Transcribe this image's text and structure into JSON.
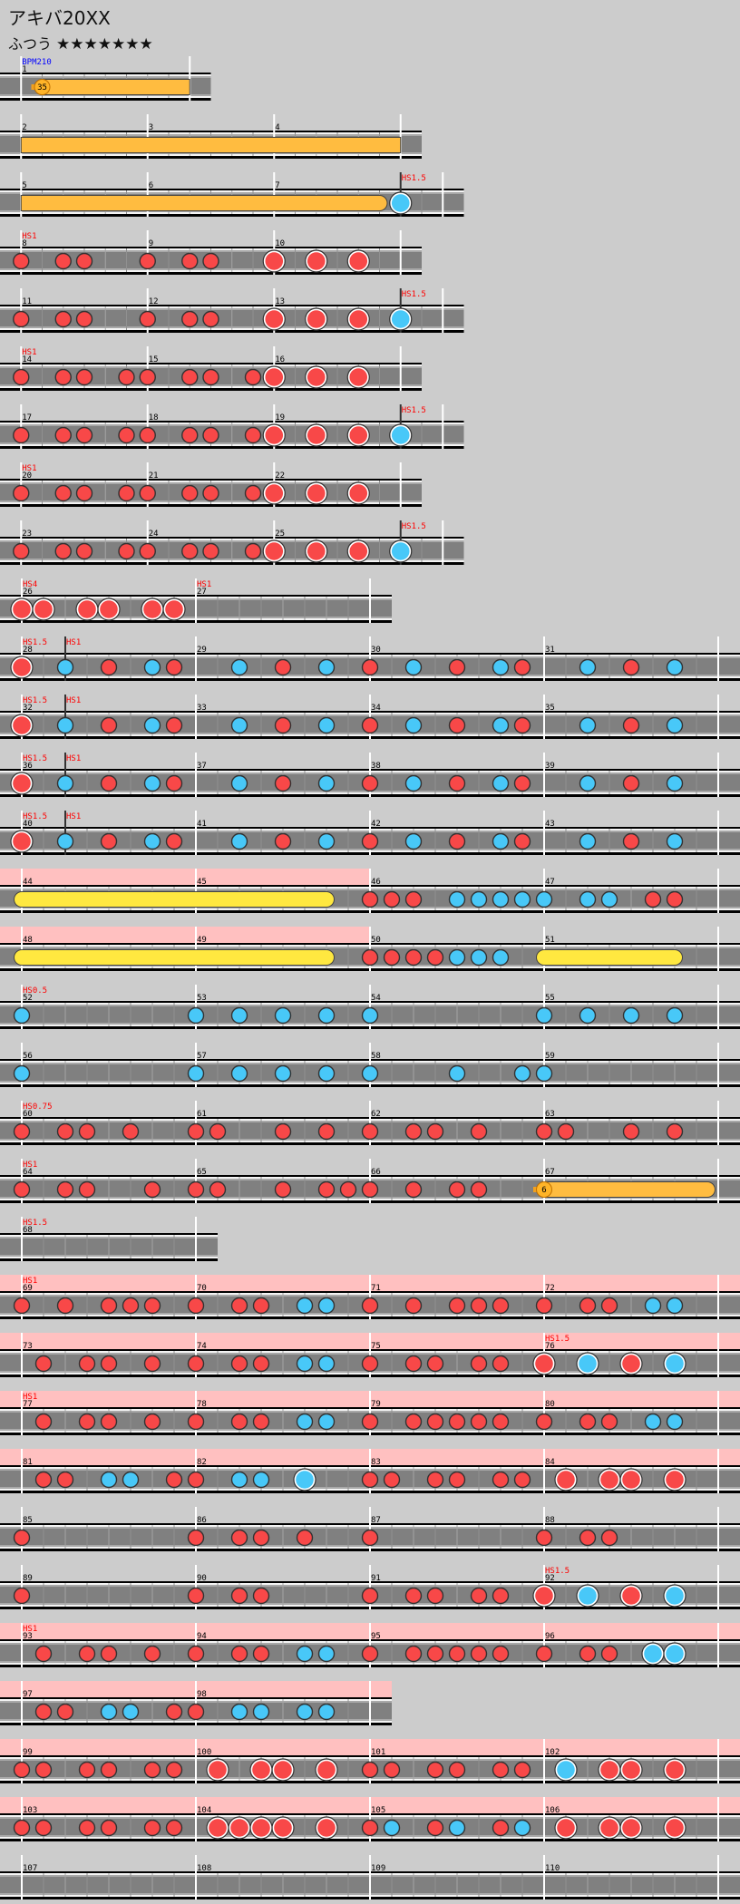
{
  "header": {
    "title": "アキバ20XX",
    "difficulty": "ふつう",
    "stars": 7
  },
  "colors": {
    "background": "#cccccc",
    "lane": "#808080",
    "don": "#f84848",
    "ka": "#48c8f8",
    "roll": "#ffe840",
    "balloon": "#ffbc40",
    "gogo": "#ffc0c0",
    "hs_label": "#ff0000",
    "bpm_label": "#0000ff"
  },
  "note_legend": {
    "0": "none",
    "1": "don",
    "2": "ka",
    "3": "big-don",
    "4": "big-ka",
    "6": "big-drumroll-start",
    "7": "balloon-start",
    "8": "roll-end"
  },
  "rows": [
    {
      "measures": [
        {
          "num": "1",
          "beats": 4,
          "notes": "07000000",
          "balloon": "35",
          "events": [
            {
              "pos": 0,
              "text": "BPM210",
              "type": "bpm"
            }
          ]
        }
      ]
    },
    {
      "measures": [
        {
          "num": "2",
          "beats": 3,
          "notes": "0"
        },
        {
          "num": "3",
          "beats": 3,
          "notes": "0"
        },
        {
          "num": "4",
          "beats": 3,
          "notes": "0"
        }
      ]
    },
    {
      "measures": [
        {
          "num": "5",
          "beats": 3,
          "notes": "0"
        },
        {
          "num": "6",
          "beats": 3,
          "notes": "0"
        },
        {
          "num": "7",
          "beats": 4,
          "notes": "00000840",
          "events": [
            {
              "pos": 0.75,
              "text": "HS1.5",
              "type": "hs"
            }
          ]
        }
      ]
    },
    {
      "measures": [
        {
          "num": "8",
          "beats": 3,
          "notes": "101100",
          "events": [
            {
              "pos": 0,
              "text": "HS1",
              "type": "hs"
            }
          ]
        },
        {
          "num": "9",
          "beats": 3,
          "notes": "101100"
        },
        {
          "num": "10",
          "beats": 3,
          "notes": "303030"
        }
      ]
    },
    {
      "measures": [
        {
          "num": "11",
          "beats": 3,
          "notes": "101100"
        },
        {
          "num": "12",
          "beats": 3,
          "notes": "101100"
        },
        {
          "num": "13",
          "beats": 4,
          "notes": "30303040",
          "events": [
            {
              "pos": 0.75,
              "text": "HS1.5",
              "type": "hs"
            }
          ]
        }
      ]
    },
    {
      "measures": [
        {
          "num": "14",
          "beats": 3,
          "notes": "101101",
          "events": [
            {
              "pos": 0,
              "text": "HS1",
              "type": "hs"
            }
          ]
        },
        {
          "num": "15",
          "beats": 3,
          "notes": "101101"
        },
        {
          "num": "16",
          "beats": 3,
          "notes": "303030"
        }
      ]
    },
    {
      "measures": [
        {
          "num": "17",
          "beats": 3,
          "notes": "101101"
        },
        {
          "num": "18",
          "beats": 3,
          "notes": "101101"
        },
        {
          "num": "19",
          "beats": 4,
          "notes": "30303040",
          "events": [
            {
              "pos": 0.75,
              "text": "HS1.5",
              "type": "hs"
            }
          ]
        }
      ]
    },
    {
      "measures": [
        {
          "num": "20",
          "beats": 3,
          "notes": "101101",
          "events": [
            {
              "pos": 0,
              "text": "HS1",
              "type": "hs"
            }
          ]
        },
        {
          "num": "21",
          "beats": 3,
          "notes": "101101"
        },
        {
          "num": "22",
          "beats": 3,
          "notes": "303030"
        }
      ]
    },
    {
      "measures": [
        {
          "num": "23",
          "beats": 3,
          "notes": "101101"
        },
        {
          "num": "24",
          "beats": 3,
          "notes": "101101"
        },
        {
          "num": "25",
          "beats": 4,
          "notes": "30303040",
          "events": [
            {
              "pos": 0.75,
              "text": "HS1.5",
              "type": "hs"
            }
          ]
        }
      ]
    },
    {
      "measures": [
        {
          "num": "26",
          "beats": 4,
          "notes": "33033033",
          "events": [
            {
              "pos": 0,
              "text": "HS4",
              "type": "hs"
            }
          ]
        },
        {
          "num": "27",
          "beats": 4,
          "notes": "0",
          "events": [
            {
              "pos": 0,
              "text": "HS1",
              "type": "hs"
            }
          ]
        }
      ]
    },
    {
      "measures": [
        {
          "num": "28",
          "beats": 4,
          "notes": "30201021",
          "events": [
            {
              "pos": 0,
              "text": "HS1.5",
              "type": "hs"
            },
            {
              "pos": 0.25,
              "text": "HS1",
              "type": "hs"
            }
          ]
        },
        {
          "num": "29",
          "beats": 4,
          "notes": "00201020"
        },
        {
          "num": "30",
          "beats": 4,
          "notes": "10201021"
        },
        {
          "num": "31",
          "beats": 4,
          "notes": "00201020"
        }
      ]
    },
    {
      "measures": [
        {
          "num": "32",
          "beats": 4,
          "notes": "30201021",
          "events": [
            {
              "pos": 0,
              "text": "HS1.5",
              "type": "hs"
            },
            {
              "pos": 0.25,
              "text": "HS1",
              "type": "hs"
            }
          ]
        },
        {
          "num": "33",
          "beats": 4,
          "notes": "00201020"
        },
        {
          "num": "34",
          "beats": 4,
          "notes": "10201021"
        },
        {
          "num": "35",
          "beats": 4,
          "notes": "00201020"
        }
      ]
    },
    {
      "measures": [
        {
          "num": "36",
          "beats": 4,
          "notes": "30201021",
          "events": [
            {
              "pos": 0,
              "text": "HS1.5",
              "type": "hs"
            },
            {
              "pos": 0.25,
              "text": "HS1",
              "type": "hs"
            }
          ]
        },
        {
          "num": "37",
          "beats": 4,
          "notes": "00201020"
        },
        {
          "num": "38",
          "beats": 4,
          "notes": "10201021"
        },
        {
          "num": "39",
          "beats": 4,
          "notes": "00201020"
        }
      ]
    },
    {
      "measures": [
        {
          "num": "40",
          "beats": 4,
          "notes": "30201021",
          "events": [
            {
              "pos": 0,
              "text": "HS1.5",
              "type": "hs"
            },
            {
              "pos": 0.25,
              "text": "HS1",
              "type": "hs"
            }
          ]
        },
        {
          "num": "41",
          "beats": 4,
          "notes": "00201020"
        },
        {
          "num": "42",
          "beats": 4,
          "notes": "10201021"
        },
        {
          "num": "43",
          "beats": 4,
          "notes": "00201020"
        }
      ]
    },
    {
      "measures": [
        {
          "num": "44",
          "beats": 4,
          "notes": "60000000",
          "gogo": true
        },
        {
          "num": "45",
          "beats": 4,
          "notes": "00000080",
          "gogo": true
        },
        {
          "num": "46",
          "beats": 4,
          "notes": "11102222"
        },
        {
          "num": "47",
          "beats": 4,
          "notes": "20220110"
        }
      ]
    },
    {
      "measures": [
        {
          "num": "48",
          "beats": 4,
          "notes": "60000000",
          "gogo": true
        },
        {
          "num": "49",
          "beats": 4,
          "notes": "00000080",
          "gogo": true
        },
        {
          "num": "50",
          "beats": 4,
          "notes": "11112220"
        },
        {
          "num": "51",
          "beats": 4,
          "notes": "60000080"
        }
      ]
    },
    {
      "measures": [
        {
          "num": "52",
          "beats": 4,
          "notes": "20000000",
          "events": [
            {
              "pos": 0,
              "text": "HS0.5",
              "type": "hs"
            }
          ]
        },
        {
          "num": "53",
          "beats": 4,
          "notes": "20202020"
        },
        {
          "num": "54",
          "beats": 4,
          "notes": "20000000"
        },
        {
          "num": "55",
          "beats": 4,
          "notes": "20202020"
        }
      ]
    },
    {
      "measures": [
        {
          "num": "56",
          "beats": 4,
          "notes": "20000000"
        },
        {
          "num": "57",
          "beats": 4,
          "notes": "20202020"
        },
        {
          "num": "58",
          "beats": 4,
          "notes": "20002002"
        },
        {
          "num": "59",
          "beats": 4,
          "notes": "20000000"
        }
      ]
    },
    {
      "measures": [
        {
          "num": "60",
          "beats": 4,
          "notes": "10110100",
          "events": [
            {
              "pos": 0,
              "text": "HS0.75",
              "type": "hs"
            }
          ]
        },
        {
          "num": "61",
          "beats": 4,
          "notes": "11001010"
        },
        {
          "num": "62",
          "beats": 4,
          "notes": "10110100"
        },
        {
          "num": "63",
          "beats": 4,
          "notes": "11001010"
        }
      ]
    },
    {
      "measures": [
        {
          "num": "64",
          "beats": 4,
          "notes": "10110010",
          "events": [
            {
              "pos": 0,
              "text": "HS1",
              "type": "hs"
            }
          ]
        },
        {
          "num": "65",
          "beats": 4,
          "notes": "11001011"
        },
        {
          "num": "66",
          "beats": 4,
          "notes": "10101100"
        },
        {
          "num": "67",
          "beats": 4,
          "notes": "7000000000000008",
          "balloon": "6"
        }
      ]
    },
    {
      "measures": [
        {
          "num": "68",
          "beats": 4,
          "notes": "0",
          "events": [
            {
              "pos": 0,
              "text": "HS1.5",
              "type": "hs"
            }
          ]
        }
      ]
    },
    {
      "measures": [
        {
          "num": "69",
          "beats": 4,
          "notes": "10101110",
          "gogo": true,
          "events": [
            {
              "pos": 0,
              "text": "HS1",
              "type": "hs"
            }
          ]
        },
        {
          "num": "70",
          "beats": 4,
          "notes": "10110220",
          "gogo": true
        },
        {
          "num": "71",
          "beats": 4,
          "notes": "10101110",
          "gogo": true
        },
        {
          "num": "72",
          "beats": 4,
          "notes": "10110220",
          "gogo": true
        }
      ]
    },
    {
      "measures": [
        {
          "num": "73",
          "beats": 4,
          "notes": "01011010",
          "gogo": true
        },
        {
          "num": "74",
          "beats": 4,
          "notes": "10110220",
          "gogo": true
        },
        {
          "num": "75",
          "beats": 4,
          "notes": "10110110",
          "gogo": true
        },
        {
          "num": "76",
          "beats": 4,
          "notes": "30403040",
          "gogo": true,
          "events": [
            {
              "pos": 0,
              "text": "HS1.5",
              "type": "hs"
            }
          ]
        }
      ]
    },
    {
      "measures": [
        {
          "num": "77",
          "beats": 4,
          "notes": "01011010",
          "gogo": true,
          "events": [
            {
              "pos": 0,
              "text": "HS1",
              "type": "hs"
            }
          ]
        },
        {
          "num": "78",
          "beats": 4,
          "notes": "10110220",
          "gogo": true
        },
        {
          "num": "79",
          "beats": 4,
          "notes": "10111110",
          "gogo": true
        },
        {
          "num": "80",
          "beats": 4,
          "notes": "10110220",
          "gogo": true
        }
      ]
    },
    {
      "measures": [
        {
          "num": "81",
          "beats": 4,
          "notes": "01102201",
          "gogo": true
        },
        {
          "num": "82",
          "beats": 4,
          "notes": "10220400",
          "gogo": true
        },
        {
          "num": "83",
          "beats": 4,
          "notes": "11011011",
          "gogo": true
        },
        {
          "num": "84",
          "beats": 4,
          "notes": "03033030",
          "gogo": true
        }
      ]
    },
    {
      "measures": [
        {
          "num": "85",
          "beats": 4,
          "notes": "10000000"
        },
        {
          "num": "86",
          "beats": 4,
          "notes": "10110100"
        },
        {
          "num": "87",
          "beats": 4,
          "notes": "10000000"
        },
        {
          "num": "88",
          "beats": 4,
          "notes": "10110000"
        }
      ]
    },
    {
      "measures": [
        {
          "num": "89",
          "beats": 4,
          "notes": "10000000"
        },
        {
          "num": "90",
          "beats": 4,
          "notes": "10110000"
        },
        {
          "num": "91",
          "beats": 4,
          "notes": "10110110"
        },
        {
          "num": "92",
          "beats": 4,
          "notes": "30403040",
          "events": [
            {
              "pos": 0,
              "text": "HS1.5",
              "type": "hs"
            }
          ]
        }
      ]
    },
    {
      "measures": [
        {
          "num": "93",
          "beats": 4,
          "notes": "01011010",
          "gogo": true,
          "events": [
            {
              "pos": 0,
              "text": "HS1",
              "type": "hs"
            }
          ]
        },
        {
          "num": "94",
          "beats": 4,
          "notes": "10110220",
          "gogo": true
        },
        {
          "num": "95",
          "beats": 4,
          "notes": "10111110",
          "gogo": true
        },
        {
          "num": "96",
          "beats": 4,
          "notes": "10110440",
          "gogo": true
        }
      ]
    },
    {
      "measures": [
        {
          "num": "97",
          "beats": 4,
          "notes": "01102201",
          "gogo": true
        },
        {
          "num": "98",
          "beats": 4,
          "notes": "10220220",
          "gogo": true
        }
      ]
    },
    {
      "measures": [
        {
          "num": "99",
          "beats": 4,
          "notes": "11011011",
          "gogo": true
        },
        {
          "num": "100",
          "beats": 4,
          "notes": "03033030",
          "gogo": true
        },
        {
          "num": "101",
          "beats": 4,
          "notes": "11011011",
          "gogo": true
        },
        {
          "num": "102",
          "beats": 4,
          "notes": "04033030",
          "gogo": true
        }
      ]
    },
    {
      "measures": [
        {
          "num": "103",
          "beats": 4,
          "notes": "11011011",
          "gogo": true
        },
        {
          "num": "104",
          "beats": 4,
          "notes": "03333030",
          "gogo": true
        },
        {
          "num": "105",
          "beats": 4,
          "notes": "12012012",
          "gogo": true
        },
        {
          "num": "106",
          "beats": 4,
          "notes": "03033030",
          "gogo": true
        }
      ]
    },
    {
      "measures": [
        {
          "num": "107",
          "beats": 4,
          "notes": "0"
        },
        {
          "num": "108",
          "beats": 4,
          "notes": "0"
        },
        {
          "num": "109",
          "beats": 4,
          "notes": "0"
        },
        {
          "num": "110",
          "beats": 4,
          "notes": "0"
        }
      ]
    }
  ]
}
